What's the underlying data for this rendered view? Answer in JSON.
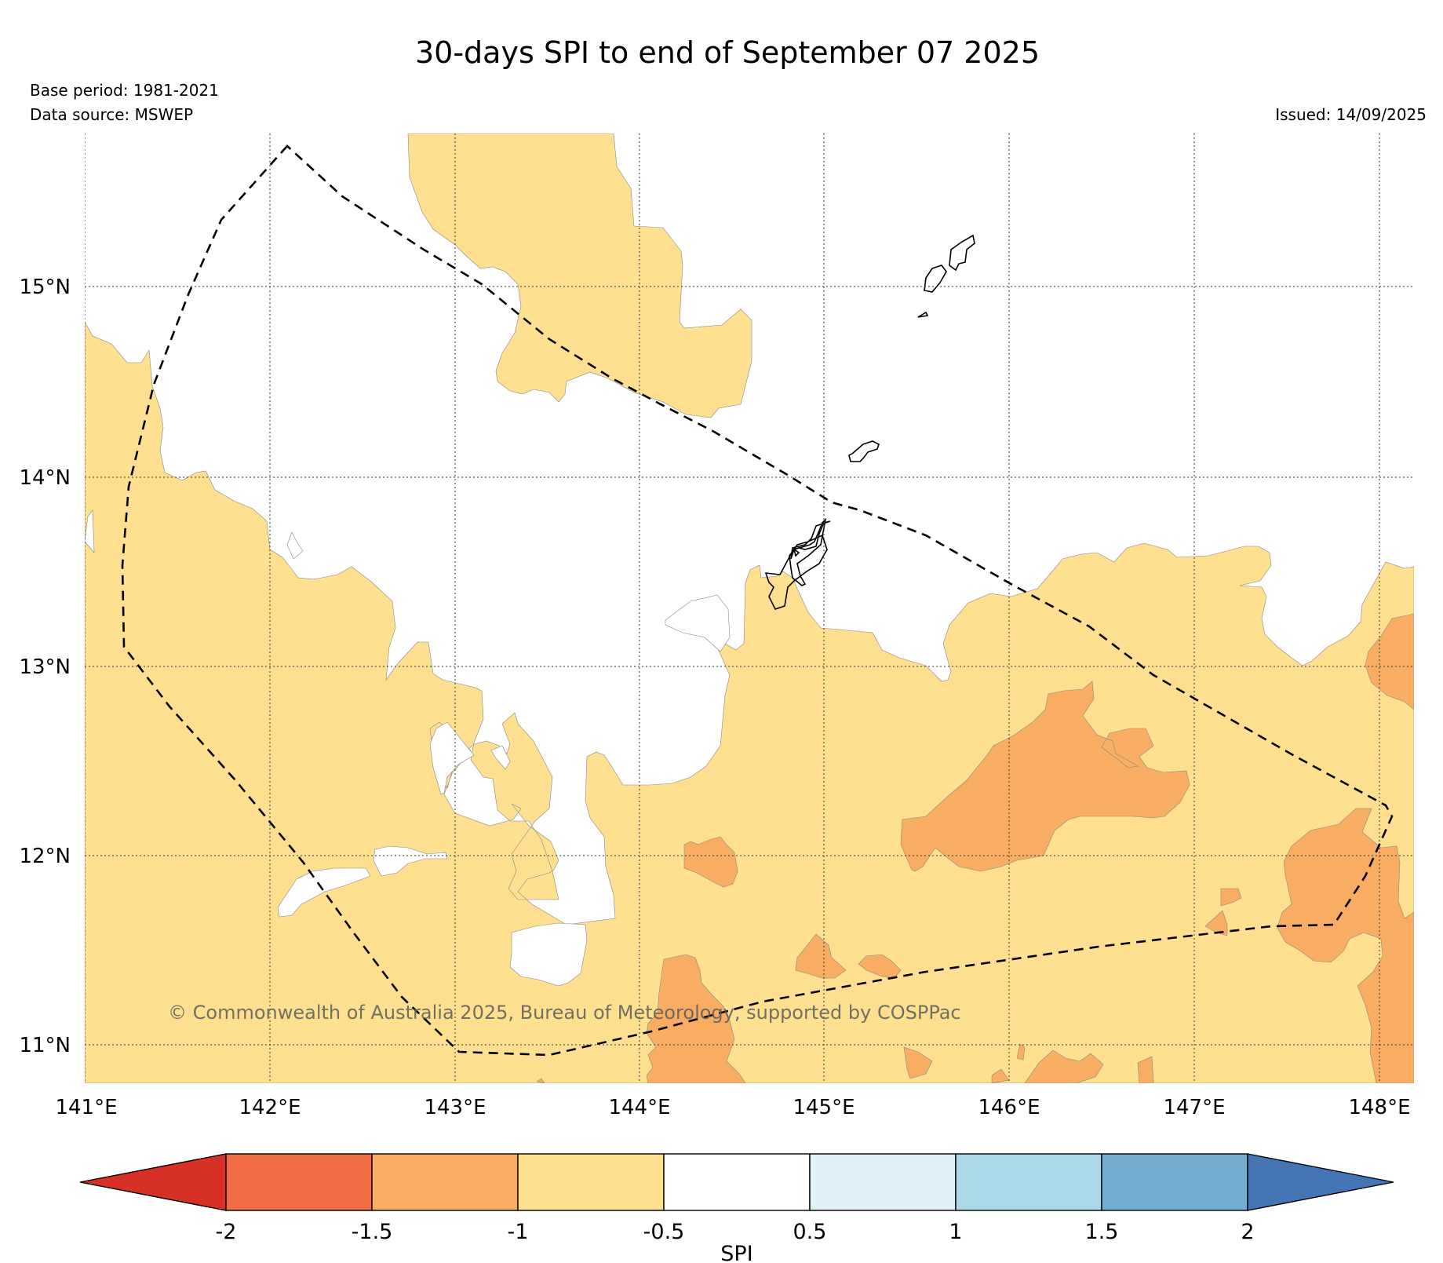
{
  "map": {
    "title": "30-days SPI to end of September 07 2025",
    "base_period": "Base period: 1981-2021",
    "data_source": "Data source: MSWEP",
    "issued": "Issued: 14/09/2025",
    "credit": "© Commonwealth of Australia 2025, Bureau of Meteorology, supported by COSPPac",
    "lon_ticks": [
      "141°E",
      "142°E",
      "143°E",
      "144°E",
      "145°E",
      "146°E",
      "147°E",
      "148°E"
    ],
    "lat_ticks": [
      "15°N",
      "14°N",
      "13°N",
      "12°N",
      "11°N"
    ],
    "colors": {
      "spi_lt_-2": "#d73027",
      "spi_-2_-1.5": "#f16b43",
      "spi_-1.5_-1": "#f9ad62",
      "spi_-1_-0.5": "#fee090",
      "spi_-0.5_0.5": "#ffffff",
      "spi_0.5_1": "#e0f2f8",
      "spi_1_1.5": "#abd9e9",
      "spi_1.5_2": "#74add1",
      "spi_gt_2": "#4575b4"
    }
  },
  "colorbar": {
    "label": "SPI",
    "ticks": [
      "-2",
      "-1.5",
      "-1",
      "-0.5",
      "0.5",
      "1",
      "1.5",
      "2"
    ]
  }
}
